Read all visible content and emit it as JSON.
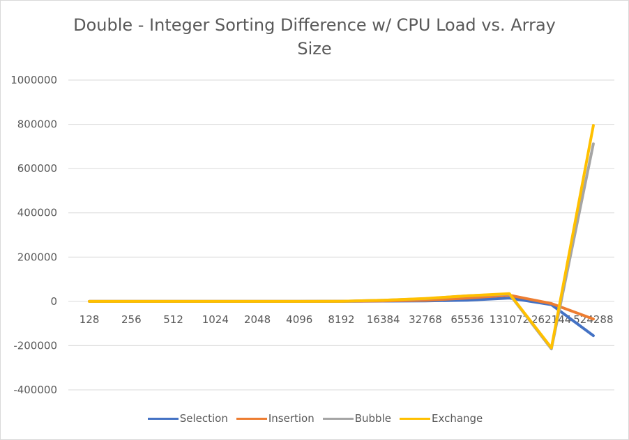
{
  "chart_data": {
    "type": "line",
    "title": "Double - Integer Sorting Difference w/ CPU Load vs. Array Size",
    "categories": [
      "128",
      "256",
      "512",
      "1024",
      "2048",
      "4096",
      "8192",
      "16384",
      "32768",
      "65536",
      "131072",
      "262144",
      "524288"
    ],
    "ylim": [
      -400000,
      1000000
    ],
    "yticks": [
      {
        "value": 1000000,
        "label": "1000000"
      },
      {
        "value": 800000,
        "label": "800000"
      },
      {
        "value": 600000,
        "label": "600000"
      },
      {
        "value": 400000,
        "label": "400000"
      },
      {
        "value": 200000,
        "label": "200000"
      },
      {
        "value": 0,
        "label": "0"
      },
      {
        "value": -200000,
        "label": "-200000"
      },
      {
        "value": -400000,
        "label": "-400000"
      }
    ],
    "grid": true,
    "legend_position": "bottom",
    "series": [
      {
        "name": "Selection",
        "color": "#4472C4",
        "values": [
          0,
          0,
          0,
          0,
          0,
          0,
          200,
          1000,
          2000,
          5000,
          15000,
          -15000,
          -155000
        ]
      },
      {
        "name": "Insertion",
        "color": "#ED7D31",
        "values": [
          0,
          0,
          0,
          0,
          0,
          0,
          300,
          2000,
          5000,
          15000,
          28000,
          -10000,
          -80000
        ]
      },
      {
        "name": "Bubble",
        "color": "#A5A5A5",
        "values": [
          0,
          0,
          0,
          0,
          0,
          0,
          500,
          5000,
          12000,
          25000,
          33000,
          -215000,
          712000
        ]
      },
      {
        "name": "Exchange",
        "color": "#FFC000",
        "values": [
          0,
          0,
          0,
          0,
          0,
          0,
          500,
          5000,
          13000,
          25000,
          35000,
          -210000,
          795000
        ]
      }
    ]
  }
}
